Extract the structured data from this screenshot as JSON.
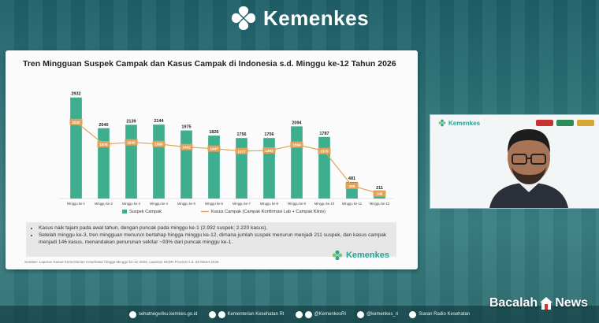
{
  "header": {
    "brand": "Kemenkes"
  },
  "slide": {
    "title": "Tren Mingguan Suspek Campak dan Kasus Campak di Indonesia s.d. Minggu ke-12 Tahun 2026",
    "notes": [
      "Kasus naik tajam pada awal tahun, dengan puncak pada minggu ke-1 (2.932 suspek; 2.220 kasus).",
      "Setelah minggu ke-3, tren mingguan menurun bertahap hingga minggu ke-12, dimana jumlah suspek menurun menjadi 211 suspek, dan kasus campak menjadi 146 kasus, menandakan penurunan sekitar ~93% dari puncak minggu ke-1."
    ],
    "source": "Sumber: Laporan Kasus Kementerian Kesehatan hingga Minggu ke-12 2026, Laporan SKDR Provinsi s.d. 28 Maret 2026",
    "logo": "Kemenkes"
  },
  "chart_data": {
    "type": "bar",
    "title": "Tren Mingguan Suspek Campak dan Kasus Campak di Indonesia s.d. Minggu ke-12 Tahun 2026",
    "categories": [
      "Minggu ke-1",
      "Minggu ke-2",
      "Minggu ke-3",
      "Minggu ke-4",
      "Minggu ke-5",
      "Minggu ke-6",
      "Minggu ke-7",
      "Minggu ke-8",
      "Minggu ke-9",
      "Minggu ke-10",
      "Minggu ke-11",
      "Minggu ke-12"
    ],
    "series": [
      {
        "name": "Suspek Campak",
        "type": "bar",
        "color": "#3fae8e",
        "values": [
          2932,
          2040,
          2139,
          2144,
          1975,
          1826,
          1756,
          1756,
          2094,
          1787,
          481,
          211
        ]
      },
      {
        "name": "Kasus Campak (Campak Konfirmasi Lab + Campak Klinis)",
        "type": "line",
        "color": "#e2a25a",
        "values": [
          2220,
          1576,
          1630,
          1583,
          1492,
          1447,
          1377,
          1393,
          1564,
          1379,
          368,
          146
        ]
      }
    ],
    "ylim": [
      0,
      3200
    ],
    "legend": "bottom"
  },
  "camera": {
    "brand": "Kemenkes"
  },
  "footer": {
    "items": [
      "sehatnegeriku.kemkes.go.id",
      "Kementerian Kesehatan RI",
      "@KemenkesRI",
      "@kemenkes_ri",
      "Siaran Radio Kesehatan"
    ]
  },
  "watermark": {
    "left": "Bacalah",
    "right": "News"
  }
}
